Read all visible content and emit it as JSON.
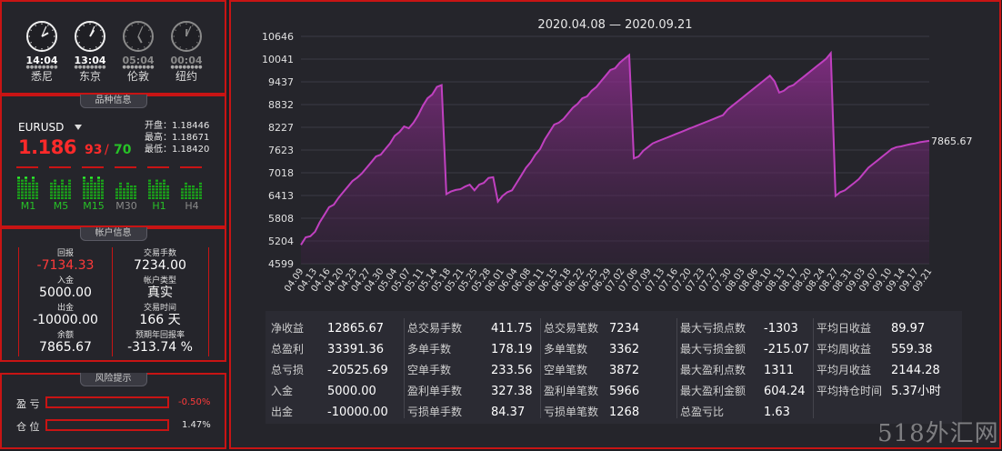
{
  "clocks": [
    {
      "time": "14:04",
      "city": "悉尼",
      "active": true,
      "h": 14,
      "m": 4
    },
    {
      "time": "13:04",
      "city": "东京",
      "active": true,
      "h": 13,
      "m": 4
    },
    {
      "time": "05:04",
      "city": "伦敦",
      "active": false,
      "h": 5,
      "m": 4
    },
    {
      "time": "00:04",
      "city": "纽约",
      "active": false,
      "h": 0,
      "m": 4
    }
  ],
  "symbol_panel": {
    "title": "品种信息",
    "symbol": "EURUSD",
    "price_big": "1.186",
    "price_mid": "93",
    "price_slash": "/",
    "spread": "70",
    "open": "开盘：1.18446",
    "high": "最高：1.18671",
    "low": "最低：1.18420",
    "timeframes": [
      {
        "label": "M1",
        "level": 0.7,
        "active": true
      },
      {
        "label": "M5",
        "level": 0.6,
        "active": true
      },
      {
        "label": "M15",
        "level": 0.7,
        "active": true
      },
      {
        "label": "M30",
        "level": 0.5,
        "active": false
      },
      {
        "label": "H1",
        "level": 0.6,
        "active": true
      },
      {
        "label": "H4",
        "level": 0.5,
        "active": false
      }
    ]
  },
  "account_panel": {
    "title": "帐户信息",
    "return_label": "回报",
    "return_value": "-7134.33",
    "trades_label": "交易手数",
    "trades_value": "7234.00",
    "deposit_label": "入金",
    "deposit_value": "5000.00",
    "type_label": "帐户类型",
    "type_value": "真实",
    "withdraw_label": "出金",
    "withdraw_value": "-10000.00",
    "time_label": "交易时间",
    "time_value": "166 天",
    "balance_label": "余额",
    "balance_value": "7865.67",
    "annual_label": "预期年回报率",
    "annual_value": "-313.74 %"
  },
  "risk_panel": {
    "title": "风险提示",
    "pnl_label": "盈 亏",
    "pnl_value": "-0.50%",
    "pnl_color": "#ff3a3a",
    "pos_label": "仓 位",
    "pos_value": "1.47%",
    "pos_color": "#e8e8e8"
  },
  "chart_data": {
    "type": "area",
    "title": "2020.04.08 — 2020.09.21",
    "yticks": [
      10646,
      10041,
      9437,
      8832,
      8227,
      7623,
      7018,
      6413,
      5808,
      5204,
      4599
    ],
    "ylim": [
      4599,
      10646
    ],
    "xticks": [
      "04.09",
      "04.13",
      "04.16",
      "04.20",
      "04.23",
      "04.27",
      "04.30",
      "05.04",
      "05.07",
      "05.11",
      "05.14",
      "05.18",
      "05.21",
      "05.25",
      "05.28",
      "06.01",
      "06.04",
      "06.08",
      "06.11",
      "06.15",
      "06.18",
      "06.22",
      "06.25",
      "06.29",
      "07.02",
      "07.06",
      "07.09",
      "07.13",
      "07.16",
      "07.20",
      "07.23",
      "07.27",
      "07.30",
      "08.03",
      "08.06",
      "08.10",
      "08.13",
      "08.17",
      "08.20",
      "08.24",
      "08.27",
      "08.31",
      "09.03",
      "09.07",
      "09.10",
      "09.14",
      "09.17",
      "09.21"
    ],
    "last_label": "7865.67",
    "line_color": "#c040c0",
    "series": [
      {
        "values": [
          5100,
          5300,
          5330,
          5450,
          5700,
          5900,
          6100,
          6170,
          6350,
          6500,
          6650,
          6800,
          6890,
          7000,
          7150,
          7300,
          7450,
          7500,
          7650,
          7800,
          8000,
          8100,
          8250,
          8200,
          8350,
          8550,
          8800,
          9000,
          9100,
          9300,
          9350,
          6450,
          6520,
          6560,
          6580,
          6650,
          6700,
          6550,
          6700,
          6750,
          6880,
          6900,
          6250,
          6400,
          6500,
          6550,
          6750,
          6950,
          7150,
          7300,
          7500,
          7650,
          7900,
          8100,
          8300,
          8350,
          8450,
          8600,
          8750,
          8850,
          9000,
          9050,
          9200,
          9300,
          9450,
          9600,
          9750,
          9800,
          9950,
          10050,
          10150,
          7400,
          7450,
          7600,
          7700,
          7800,
          7850,
          7900,
          7950,
          8000,
          8050,
          8100,
          8150,
          8200,
          8250,
          8300,
          8350,
          8400,
          8450,
          8500,
          8550,
          8700,
          8800,
          8900,
          9000,
          9100,
          9200,
          9300,
          9400,
          9500,
          9600,
          9450,
          9150,
          9200,
          9300,
          9350,
          9450,
          9550,
          9650,
          9750,
          9850,
          9950,
          10050,
          10200,
          6400,
          6500,
          6550,
          6650,
          6750,
          6850,
          7000,
          7150,
          7250,
          7350,
          7450,
          7550,
          7650,
          7700,
          7720,
          7750,
          7780,
          7800,
          7830,
          7850,
          7865.67
        ]
      }
    ]
  },
  "stats": [
    [
      [
        "净收益",
        "12865.67"
      ],
      [
        "总盈利",
        "33391.36"
      ],
      [
        "总亏损",
        "-20525.69"
      ],
      [
        "入金",
        "5000.00"
      ],
      [
        "出金",
        "-10000.00"
      ]
    ],
    [
      [
        "总交易手数",
        "411.75"
      ],
      [
        "多单手数",
        "178.19"
      ],
      [
        "空单手数",
        "233.56"
      ],
      [
        "盈利单手数",
        "327.38"
      ],
      [
        "亏损单手数",
        "84.37"
      ]
    ],
    [
      [
        "总交易笔数",
        "7234"
      ],
      [
        "多单笔数",
        "3362"
      ],
      [
        "空单笔数",
        "3872"
      ],
      [
        "盈利单笔数",
        "5966"
      ],
      [
        "亏损单笔数",
        "1268"
      ]
    ],
    [
      [
        "最大亏损点数",
        "-1303"
      ],
      [
        "最大亏损金额",
        "-215.07"
      ],
      [
        "最大盈利点数",
        "1311"
      ],
      [
        "最大盈利金额",
        "604.24"
      ],
      [
        "总盈亏比",
        "1.63"
      ]
    ],
    [
      [
        "平均日收益",
        "89.97"
      ],
      [
        "平均周收益",
        "559.38"
      ],
      [
        "平均月收益",
        "2144.28"
      ],
      [
        "平均持仓时间",
        "5.37小时"
      ]
    ]
  ],
  "watermark": "518外汇网"
}
